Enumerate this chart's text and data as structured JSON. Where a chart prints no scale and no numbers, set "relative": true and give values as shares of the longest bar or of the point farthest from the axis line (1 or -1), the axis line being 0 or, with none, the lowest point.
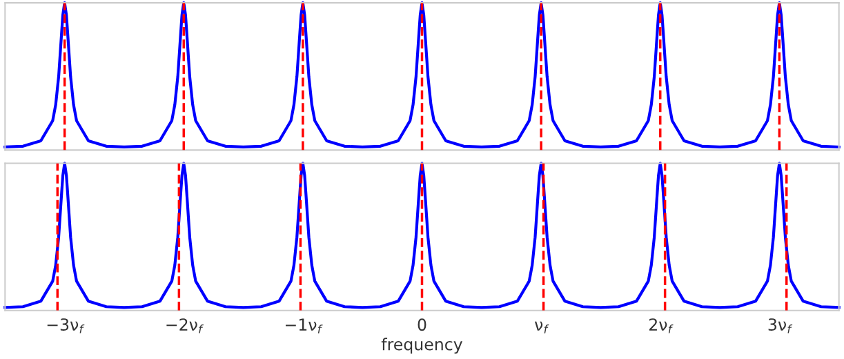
{
  "chart_data": [
    {
      "type": "line",
      "relative": true,
      "xlim": [
        -3.5,
        3.5
      ],
      "tick_labels": false,
      "grid": false,
      "legend": false,
      "series": [
        {
          "color": "#0000ff",
          "x": [
            -3.5,
            -3.35,
            -3.2,
            -3.1,
            -3.075,
            -3.05,
            -3.025,
            -3.015,
            -3,
            -2.985,
            -2.975,
            -2.95,
            -2.925,
            -2.9,
            -2.8,
            -2.65,
            -2.5,
            -2.35,
            -2.2,
            -2.1,
            -2.075,
            -2.05,
            -2.025,
            -2.015,
            -2,
            -1.985,
            -1.975,
            -1.95,
            -1.925,
            -1.9,
            -1.8,
            -1.65,
            -1.5,
            -1.35,
            -1.2,
            -1.1,
            -1.075,
            -1.05,
            -1.025,
            -1.015,
            -1,
            -0.985,
            -0.975,
            -0.95,
            -0.925,
            -0.9,
            -0.8,
            -0.65,
            -0.5,
            -0.35,
            -0.2,
            -0.1,
            -0.075,
            -0.05,
            -0.025,
            -0.015,
            0,
            0.015,
            0.025,
            0.05,
            0.075,
            0.1,
            0.2,
            0.35,
            0.5,
            0.65,
            0.8,
            0.9,
            0.925,
            0.95,
            0.975,
            0.985,
            1,
            1.015,
            1.025,
            1.05,
            1.075,
            1.1,
            1.2,
            1.35,
            1.5,
            1.65,
            1.8,
            1.9,
            1.925,
            1.95,
            1.975,
            1.985,
            2,
            2.015,
            2.025,
            2.05,
            2.075,
            2.1,
            2.2,
            2.35,
            2.5,
            2.65,
            2.8,
            2.9,
            2.925,
            2.95,
            2.975,
            2.985,
            3,
            3.015,
            3.025,
            3.05,
            3.075,
            3.1,
            3.2,
            3.35,
            3.5
          ],
          "values": [
            0.021,
            0.026,
            0.063,
            0.2,
            0.308,
            0.5,
            0.8,
            0.917,
            1,
            0.917,
            0.8,
            0.5,
            0.308,
            0.2,
            0.063,
            0.026,
            0.021,
            0.026,
            0.063,
            0.2,
            0.308,
            0.5,
            0.8,
            0.917,
            1,
            0.917,
            0.8,
            0.5,
            0.308,
            0.2,
            0.063,
            0.026,
            0.021,
            0.026,
            0.063,
            0.2,
            0.308,
            0.5,
            0.8,
            0.917,
            1,
            0.917,
            0.8,
            0.5,
            0.308,
            0.2,
            0.063,
            0.026,
            0.021,
            0.026,
            0.063,
            0.2,
            0.308,
            0.5,
            0.8,
            0.917,
            1,
            0.917,
            0.8,
            0.5,
            0.308,
            0.2,
            0.063,
            0.026,
            0.021,
            0.026,
            0.063,
            0.2,
            0.308,
            0.5,
            0.8,
            0.917,
            1,
            0.917,
            0.8,
            0.5,
            0.308,
            0.2,
            0.063,
            0.026,
            0.021,
            0.026,
            0.063,
            0.2,
            0.308,
            0.5,
            0.8,
            0.917,
            1,
            0.917,
            0.8,
            0.5,
            0.308,
            0.2,
            0.063,
            0.026,
            0.021,
            0.026,
            0.063,
            0.2,
            0.308,
            0.5,
            0.8,
            0.917,
            1,
            0.917,
            0.8,
            0.5,
            0.308,
            0.2,
            0.063,
            0.026,
            0.021
          ]
        }
      ],
      "ref_lines": [
        {
          "axis": "x",
          "value": -3,
          "color": "#ff0000",
          "line_style": "dashed"
        },
        {
          "axis": "x",
          "value": -2,
          "color": "#ff0000",
          "line_style": "dashed"
        },
        {
          "axis": "x",
          "value": -1,
          "color": "#ff0000",
          "line_style": "dashed"
        },
        {
          "axis": "x",
          "value": 0,
          "color": "#ff0000",
          "line_style": "dashed"
        },
        {
          "axis": "x",
          "value": 1,
          "color": "#ff0000",
          "line_style": "dashed"
        },
        {
          "axis": "x",
          "value": 2,
          "color": "#ff0000",
          "line_style": "dashed"
        },
        {
          "axis": "x",
          "value": 3,
          "color": "#ff0000",
          "line_style": "dashed"
        }
      ]
    },
    {
      "type": "line",
      "relative": true,
      "xlim": [
        -3.5,
        3.5
      ],
      "tick_labels": "x",
      "grid": false,
      "legend": false,
      "xlabel": "frequency",
      "xticks": [
        {
          "value": -3,
          "label": "−3ν$_{f}$"
        },
        {
          "value": -2,
          "label": "−2ν$_{f}$"
        },
        {
          "value": -1,
          "label": "−1ν$_{f}$"
        },
        0,
        {
          "value": 1,
          "label": "ν$_{f}$"
        },
        {
          "value": 2,
          "label": "2ν$_{f}$"
        },
        {
          "value": 3,
          "label": "3ν$_{f}$"
        }
      ],
      "series": [
        {
          "color": "#0000ff",
          "x": [
            -3.5,
            -3.35,
            -3.2,
            -3.1,
            -3.075,
            -3.05,
            -3.025,
            -3.015,
            -3,
            -2.985,
            -2.975,
            -2.95,
            -2.925,
            -2.9,
            -2.8,
            -2.65,
            -2.5,
            -2.35,
            -2.2,
            -2.1,
            -2.075,
            -2.05,
            -2.025,
            -2.015,
            -2,
            -1.985,
            -1.975,
            -1.95,
            -1.925,
            -1.9,
            -1.8,
            -1.65,
            -1.5,
            -1.35,
            -1.2,
            -1.1,
            -1.075,
            -1.05,
            -1.025,
            -1.015,
            -1,
            -0.985,
            -0.975,
            -0.95,
            -0.925,
            -0.9,
            -0.8,
            -0.65,
            -0.5,
            -0.35,
            -0.2,
            -0.1,
            -0.075,
            -0.05,
            -0.025,
            -0.015,
            0,
            0.015,
            0.025,
            0.05,
            0.075,
            0.1,
            0.2,
            0.35,
            0.5,
            0.65,
            0.8,
            0.9,
            0.925,
            0.95,
            0.975,
            0.985,
            1,
            1.015,
            1.025,
            1.05,
            1.075,
            1.1,
            1.2,
            1.35,
            1.5,
            1.65,
            1.8,
            1.9,
            1.925,
            1.95,
            1.975,
            1.985,
            2,
            2.015,
            2.025,
            2.05,
            2.075,
            2.1,
            2.2,
            2.35,
            2.5,
            2.65,
            2.8,
            2.9,
            2.925,
            2.95,
            2.975,
            2.985,
            3,
            3.015,
            3.025,
            3.05,
            3.075,
            3.1,
            3.2,
            3.35,
            3.5
          ],
          "values": [
            0.021,
            0.026,
            0.063,
            0.2,
            0.308,
            0.5,
            0.8,
            0.917,
            1,
            0.917,
            0.8,
            0.5,
            0.308,
            0.2,
            0.063,
            0.026,
            0.021,
            0.026,
            0.063,
            0.2,
            0.308,
            0.5,
            0.8,
            0.917,
            1,
            0.917,
            0.8,
            0.5,
            0.308,
            0.2,
            0.063,
            0.026,
            0.021,
            0.026,
            0.063,
            0.2,
            0.308,
            0.5,
            0.8,
            0.917,
            1,
            0.917,
            0.8,
            0.5,
            0.308,
            0.2,
            0.063,
            0.026,
            0.021,
            0.026,
            0.063,
            0.2,
            0.308,
            0.5,
            0.8,
            0.917,
            1,
            0.917,
            0.8,
            0.5,
            0.308,
            0.2,
            0.063,
            0.026,
            0.021,
            0.026,
            0.063,
            0.2,
            0.308,
            0.5,
            0.8,
            0.917,
            1,
            0.917,
            0.8,
            0.5,
            0.308,
            0.2,
            0.063,
            0.026,
            0.021,
            0.026,
            0.063,
            0.2,
            0.308,
            0.5,
            0.8,
            0.917,
            1,
            0.917,
            0.8,
            0.5,
            0.308,
            0.2,
            0.063,
            0.026,
            0.021,
            0.026,
            0.063,
            0.2,
            0.308,
            0.5,
            0.8,
            0.917,
            1,
            0.917,
            0.8,
            0.5,
            0.308,
            0.2,
            0.063,
            0.026,
            0.021
          ]
        }
      ],
      "ref_lines": [
        {
          "axis": "x",
          "value": -3.06,
          "color": "#ff0000",
          "line_style": "dashed"
        },
        {
          "axis": "x",
          "value": -2.04,
          "color": "#ff0000",
          "line_style": "dashed"
        },
        {
          "axis": "x",
          "value": -1.02,
          "color": "#ff0000",
          "line_style": "dashed"
        },
        {
          "axis": "x",
          "value": 0,
          "color": "#ff0000",
          "line_style": "dashed"
        },
        {
          "axis": "x",
          "value": 1.02,
          "color": "#ff0000",
          "line_style": "dashed"
        },
        {
          "axis": "x",
          "value": 2.04,
          "color": "#ff0000",
          "line_style": "dashed"
        },
        {
          "axis": "x",
          "value": 3.06,
          "color": "#ff0000",
          "line_style": "dashed"
        }
      ]
    }
  ]
}
